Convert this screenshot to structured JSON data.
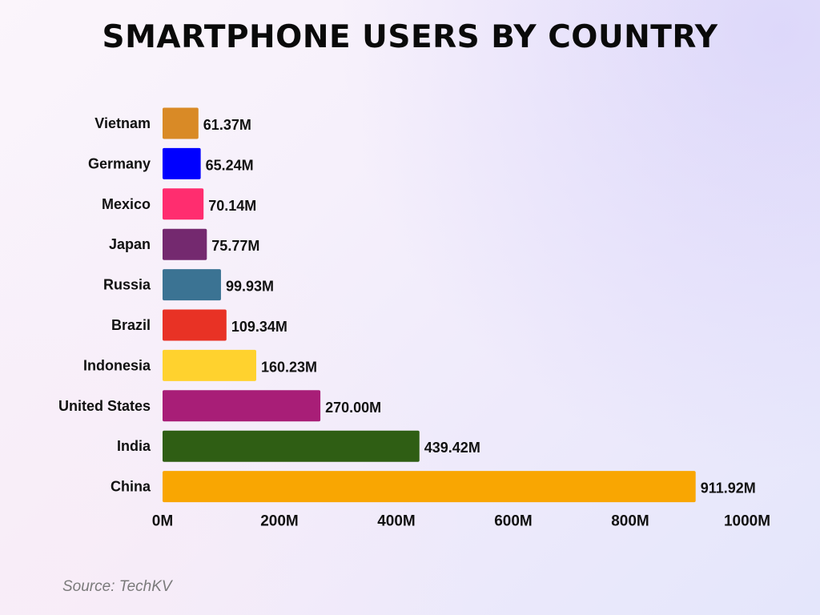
{
  "chart_data": {
    "type": "bar",
    "orientation": "horizontal",
    "title": "SMARTPHONE USERS BY COUNTRY",
    "categories": [
      "Vietnam",
      "Germany",
      "Mexico",
      "Japan",
      "Russia",
      "Brazil",
      "Indonesia",
      "United States",
      "India",
      "China"
    ],
    "values": [
      61.37,
      65.24,
      70.14,
      75.77,
      99.93,
      109.34,
      160.23,
      270.0,
      439.42,
      911.92
    ],
    "value_labels": [
      "61.37M",
      "65.24M",
      "70.14M",
      "75.77M",
      "99.93M",
      "109.34M",
      "160.23M",
      "270.00M",
      "439.42M",
      "911.92M"
    ],
    "colors": [
      "#d98a26",
      "#0000ff",
      "#ff2d6f",
      "#74296f",
      "#3b7393",
      "#e83225",
      "#ffd22e",
      "#a81e77",
      "#2f5e14",
      "#f9a602"
    ],
    "xlim": [
      0,
      1000
    ],
    "xticks": [
      0,
      200,
      400,
      600,
      800,
      1000
    ],
    "xtick_labels": [
      "0M",
      "200M",
      "400M",
      "600M",
      "800M",
      "1000M"
    ],
    "xlabel": "",
    "ylabel": "",
    "grid": false,
    "unit": "M"
  },
  "source": "Source: TechKV"
}
